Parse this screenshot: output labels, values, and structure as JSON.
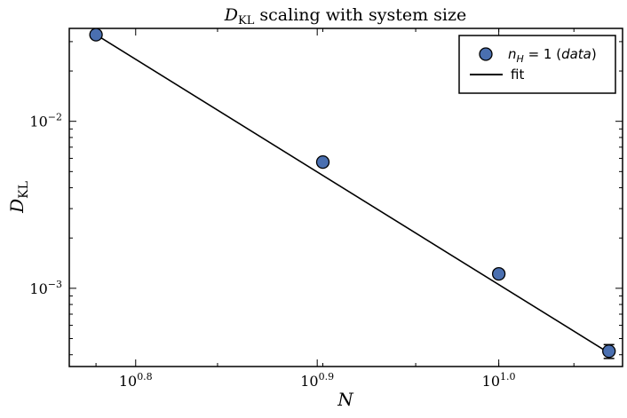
{
  "chart_data": {
    "type": "scatter",
    "title": {
      "main": "D",
      "sub": "KL",
      "rest": " scaling with system size"
    },
    "xlabel": "N",
    "ylabel": {
      "main": "D",
      "sub": "KL"
    },
    "x_scale": "log",
    "y_scale": "log",
    "xlim": [
      5.8,
      11.7
    ],
    "ylim": [
      0.00034,
      0.036
    ],
    "x_ticks": [
      {
        "value": 6.30957,
        "base": "10",
        "exp": "0.8"
      },
      {
        "value": 7.94328,
        "base": "10",
        "exp": "0.9"
      },
      {
        "value": 10.0,
        "base": "10",
        "exp": "1.0"
      }
    ],
    "y_ticks": [
      {
        "value": 0.01,
        "base": "10",
        "exp": "−2"
      },
      {
        "value": 0.001,
        "base": "10",
        "exp": "−3"
      }
    ],
    "series": [
      {
        "name": "data",
        "kind": "points",
        "x": [
          6.0,
          8.0,
          10.0,
          11.5
        ],
        "y": [
          0.033,
          0.0057,
          0.00122,
          0.00042
        ],
        "yerr_low": [
          0,
          0,
          0,
          4e-05
        ],
        "yerr_high": [
          0,
          0,
          0,
          4e-05
        ],
        "color": "#4a6fb0",
        "edge_color": "#000000"
      },
      {
        "name": "fit",
        "kind": "line",
        "x": [
          6.0,
          11.5
        ],
        "y": [
          0.033,
          0.00041
        ],
        "color": "#000000"
      }
    ],
    "legend": {
      "position": "top-right",
      "entries": [
        {
          "series": "data",
          "math": "n",
          "sub": "H",
          "rest": " = 1 (",
          "italic": "data",
          "close": ")"
        },
        {
          "series": "fit",
          "label": "fit"
        }
      ]
    },
    "grid": false
  }
}
